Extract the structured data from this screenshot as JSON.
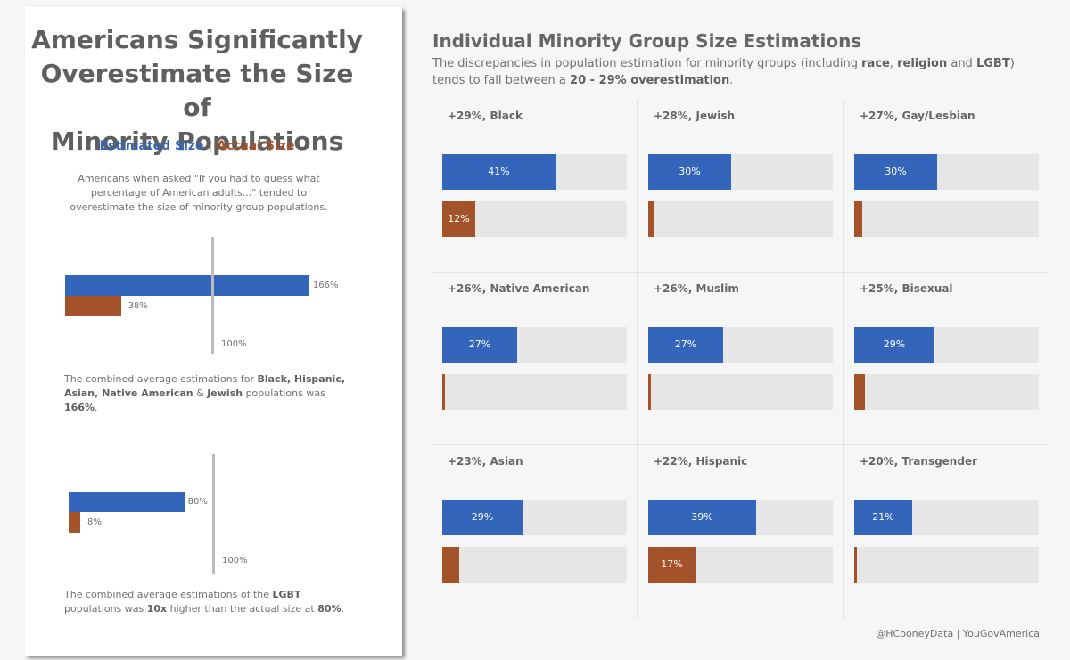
{
  "left": {
    "title_lines": [
      "Americans Significantly",
      "Overestimate the Size of",
      "Minority Populations"
    ],
    "legend": {
      "estimated": "Estimated Size",
      "separator": "|",
      "actual": "Actual Size"
    },
    "intro": "Americans when asked \"If you had to guess what percentage of American adults...\" tended to overestimate the size of minority group populations.",
    "summary_charts": [
      {
        "estimated": 166,
        "actual": 38,
        "reference": 100,
        "estimated_label": "166%",
        "actual_label": "38%",
        "reference_label": "100%",
        "note": {
          "p1": "The combined average estimations for ",
          "b1": "Black, Hispanic,",
          "p2": " ",
          "b2": "Asian, Native American",
          "p3": " & ",
          "b3": "Jewish",
          "p4": " populations was ",
          "b4": "166%",
          "p5": "."
        }
      },
      {
        "estimated": 80,
        "actual": 8,
        "reference": 100,
        "estimated_label": "80%",
        "actual_label": "8%",
        "reference_label": "100%",
        "note": {
          "p1": "The combined average estimations of the ",
          "b1": "LGBT",
          "p2": " populations was ",
          "b2": "10x",
          "p3": " higher than the actual size at ",
          "b3": "80%",
          "p4": "."
        }
      }
    ]
  },
  "right": {
    "title": "Individual Minority Group Size Estimations",
    "subtitle": {
      "p1": "The discrepancies in population estimation for minority groups (including ",
      "b1": "race",
      "p2": ", ",
      "b2": "religion",
      "p3": " and ",
      "b3": "LGBT",
      "p4": ") tends to fall between a ",
      "b4": "20 - 29% overestimation",
      "p5": "."
    }
  },
  "chart_data": {
    "type": "bar",
    "scale_max": 100,
    "series": [
      {
        "name": "Estimated Size",
        "color": "#3366bb"
      },
      {
        "name": "Actual Size",
        "color": "#a3522a"
      }
    ],
    "groups": [
      {
        "title": "+29%, Black",
        "estimated": 41,
        "actual": 12,
        "estimated_label": "41%",
        "actual_label": "12%"
      },
      {
        "title": "+28%, Jewish",
        "estimated": 30,
        "actual": 2,
        "estimated_label": "30%",
        "actual_label": ""
      },
      {
        "title": "+27%, Gay/Lesbian",
        "estimated": 30,
        "actual": 3,
        "estimated_label": "30%",
        "actual_label": ""
      },
      {
        "title": "+26%, Native American",
        "estimated": 27,
        "actual": 1,
        "estimated_label": "27%",
        "actual_label": ""
      },
      {
        "title": "+26%, Muslim",
        "estimated": 27,
        "actual": 1,
        "estimated_label": "27%",
        "actual_label": ""
      },
      {
        "title": "+25%, Bisexual",
        "estimated": 29,
        "actual": 4,
        "estimated_label": "29%",
        "actual_label": ""
      },
      {
        "title": "+23%, Asian",
        "estimated": 29,
        "actual": 6,
        "estimated_label": "29%",
        "actual_label": ""
      },
      {
        "title": "+22%, Hispanic",
        "estimated": 39,
        "actual": 17,
        "estimated_label": "39%",
        "actual_label": "17%"
      },
      {
        "title": "+20%, Transgender",
        "estimated": 21,
        "actual": 1,
        "estimated_label": "21%",
        "actual_label": ""
      }
    ]
  },
  "footer": "@HCooneyData | YouGovAmerica"
}
